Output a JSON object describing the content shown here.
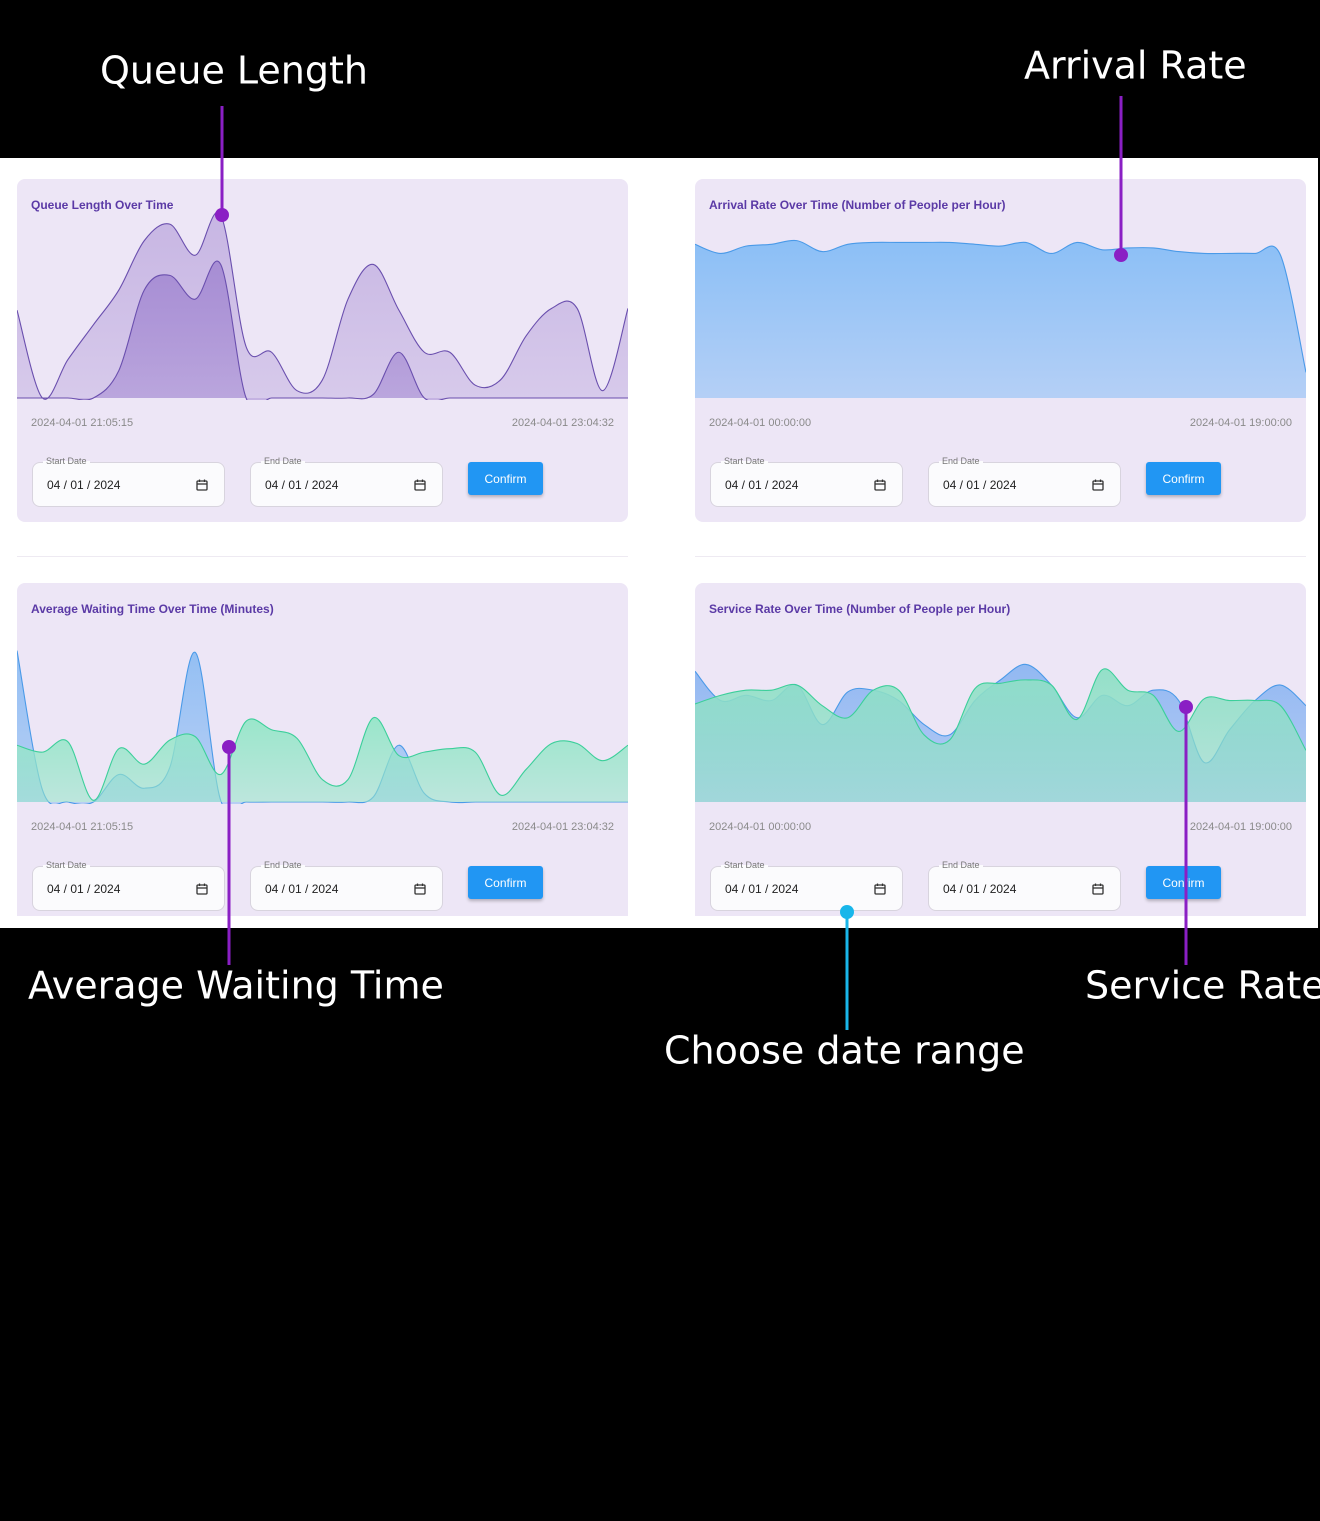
{
  "annotations": [
    {
      "label": "Queue Length"
    },
    {
      "label": "Arrival Rate"
    },
    {
      "label": "Average Waiting Time"
    },
    {
      "label": "Service Rate"
    },
    {
      "label": "Choose date range"
    }
  ],
  "panels": [
    {
      "title": "Queue Length Over Time",
      "x_range_labels": [
        "2024-04-01 21:05:15",
        "2024-04-01 23:04:32"
      ],
      "start_date_label": "Start Date",
      "start_date_value": "04 / 01 / 2024",
      "end_date_label": "End Date",
      "end_date_value": "04 / 01 / 2024",
      "button": "Confirm",
      "chart": {
        "type": "area",
        "ylim": [
          0,
          100
        ],
        "series": [
          {
            "color": "#c5b3e2",
            "stroke": "#6a4fae",
            "values": [
              48,
              0,
              21,
              40,
              59,
              86,
              95,
              78,
              100,
              28,
              25,
              4,
              10,
              54,
              73,
              48,
              25,
              25,
              7,
              10,
              34,
              49,
              49,
              4,
              49
            ]
          },
          {
            "color": "#a58bd3",
            "stroke": "#6a4fae",
            "values": [
              0,
              0,
              0,
              0,
              15,
              59,
              67,
              54,
              73,
              0,
              0,
              0,
              0,
              0,
              2,
              25,
              0,
              0,
              0,
              0,
              0,
              0,
              0,
              0,
              0
            ]
          }
        ]
      }
    },
    {
      "title": "Arrival Rate Over Time (Number of People per Hour)",
      "x_range_labels": [
        "2024-04-01 00:00:00",
        "2024-04-01 19:00:00"
      ],
      "start_date_label": "Start Date",
      "start_date_value": "04 / 01 / 2024",
      "end_date_label": "End Date",
      "end_date_value": "04 / 01 / 2024",
      "button": "Confirm",
      "chart": {
        "type": "area",
        "ylim": [
          0,
          100
        ],
        "series": [
          {
            "color": "#86bdf6",
            "stroke": "#4a9ae8",
            "values": [
              84,
              79,
              83,
              84,
              86,
              80,
              84,
              85,
              85,
              85,
              85,
              84,
              83,
              85,
              79,
              85,
              81,
              82,
              82,
              80,
              79,
              79,
              79,
              78,
              14
            ]
          }
        ]
      }
    },
    {
      "title": "Average Waiting Time Over Time (Minutes)",
      "x_range_labels": [
        "2024-04-01 21:05:15",
        "2024-04-01 23:04:32"
      ],
      "start_date_label": "Start Date",
      "start_date_value": "04 / 01 / 2024",
      "end_date_label": "End Date",
      "end_date_value": "04 / 01 / 2024",
      "button": "Confirm",
      "chart": {
        "type": "area",
        "ylim": [
          0,
          100
        ],
        "series": [
          {
            "color": "#8fbdf3",
            "stroke": "#4a9ae8",
            "values": [
              88,
              7,
              0,
              0,
              16,
              8,
              20,
              87,
              1,
              0,
              0,
              0,
              0,
              0,
              3,
              33,
              5,
              0,
              0,
              0,
              0,
              0,
              0,
              0,
              0
            ]
          },
          {
            "color": "#95e6c8",
            "stroke": "#3ccf9a",
            "values": [
              33,
              29,
              35,
              1,
              31,
              22,
              36,
              38,
              16,
              47,
              42,
              37,
              13,
              13,
              49,
              27,
              29,
              31,
              29,
              4,
              19,
              34,
              34,
              24,
              33
            ]
          }
        ]
      }
    },
    {
      "title": "Service Rate Over Time (Number of People per Hour)",
      "x_range_labels": [
        "2024-04-01 00:00:00",
        "2024-04-01 19:00:00"
      ],
      "start_date_label": "Start Date",
      "start_date_value": "04 / 01 / 2024",
      "end_date_label": "End Date",
      "end_date_value": "04 / 01 / 2024",
      "button": "Confirm",
      "chart": {
        "type": "area",
        "ylim": [
          0,
          100
        ],
        "series": [
          {
            "color": "#8db6f2",
            "stroke": "#4a9ae8",
            "values": [
              76,
              59,
              62,
              59,
              68,
              45,
              64,
              65,
              59,
              45,
              39,
              59,
              71,
              80,
              68,
              49,
              62,
              56,
              65,
              59,
              23,
              42,
              59,
              68,
              56
            ]
          },
          {
            "color": "#8fe0c6",
            "stroke": "#3ccf9a",
            "values": [
              57,
              62,
              65,
              65,
              68,
              56,
              49,
              65,
              65,
              39,
              36,
              66,
              69,
              71,
              68,
              48,
              77,
              65,
              62,
              41,
              60,
              59,
              59,
              56,
              30
            ]
          }
        ]
      }
    }
  ]
}
